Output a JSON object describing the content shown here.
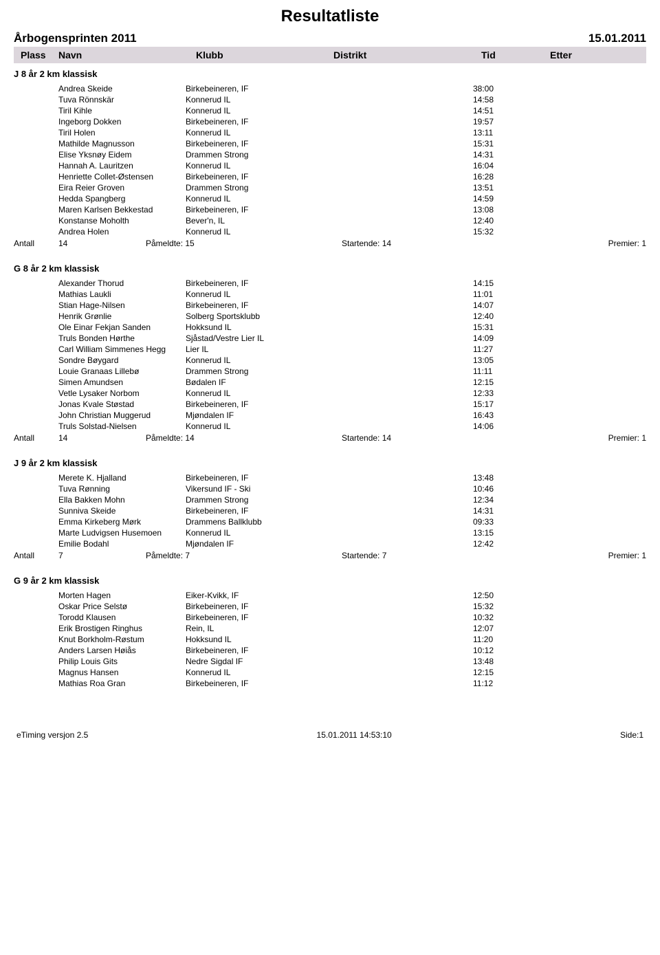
{
  "page": {
    "title": "Resultatliste",
    "subtitle": "Årbogensprinten 2011",
    "date": "15.01.2011"
  },
  "columns": {
    "plass": "Plass",
    "navn": "Navn",
    "klubb": "Klubb",
    "distrikt": "Distrikt",
    "tid": "Tid",
    "etter": "Etter"
  },
  "labels": {
    "antall": "Antall",
    "pameldte": "Påmeldte:",
    "startende": "Startende:",
    "premier": "Premier:"
  },
  "categories": [
    {
      "name": "J 8 år 2 km klassisk",
      "results": [
        {
          "name": "Andrea Skeide",
          "club": "Birkebeineren, IF",
          "time": "38:00"
        },
        {
          "name": "Tuva Rönnskär",
          "club": "Konnerud IL",
          "time": "14:58"
        },
        {
          "name": "Tiril Kihle",
          "club": "Konnerud IL",
          "time": "14:51"
        },
        {
          "name": "Ingeborg Dokken",
          "club": "Birkebeineren, IF",
          "time": "19:57"
        },
        {
          "name": "Tiril Holen",
          "club": "Konnerud IL",
          "time": "13:11"
        },
        {
          "name": "Mathilde Magnusson",
          "club": "Birkebeineren, IF",
          "time": "15:31"
        },
        {
          "name": "Elise Yksnøy Eidem",
          "club": "Drammen Strong",
          "time": "14:31"
        },
        {
          "name": "Hannah A. Lauritzen",
          "club": "Konnerud IL",
          "time": "16:04"
        },
        {
          "name": "Henriette Collet-Østensen",
          "club": "Birkebeineren, IF",
          "time": "16:28"
        },
        {
          "name": "Eira Reier Groven",
          "club": "Drammen Strong",
          "time": "13:51"
        },
        {
          "name": "Hedda Spangberg",
          "club": "Konnerud IL",
          "time": "14:59"
        },
        {
          "name": "Maren Karlsen Bekkestad",
          "club": "Birkebeineren, IF",
          "time": "13:08"
        },
        {
          "name": "Konstanse Moholth",
          "club": "Bever'n, IL",
          "time": "12:40"
        },
        {
          "name": "Andrea Holen",
          "club": "Konnerud IL",
          "time": "15:32"
        }
      ],
      "summary": {
        "antall": "14",
        "pameldte": "15",
        "startende": "14",
        "premier": "1"
      }
    },
    {
      "name": "G 8 år 2 km klassisk",
      "results": [
        {
          "name": "Alexander Thorud",
          "club": "Birkebeineren, IF",
          "time": "14:15"
        },
        {
          "name": "Mathias Laukli",
          "club": "Konnerud IL",
          "time": "11:01"
        },
        {
          "name": "Stian Hage-Nilsen",
          "club": "Birkebeineren, IF",
          "time": "14:07"
        },
        {
          "name": "Henrik Grønlie",
          "club": "Solberg Sportsklubb",
          "time": "12:40"
        },
        {
          "name": "Ole Einar Fekjan Sanden",
          "club": "Hokksund IL",
          "time": "15:31"
        },
        {
          "name": "Truls Bonden Hørthe",
          "club": "Sjåstad/Vestre Lier IL",
          "time": "14:09"
        },
        {
          "name": "Carl William Simmenes Hegg",
          "club": "Lier IL",
          "time": "11:27"
        },
        {
          "name": "Sondre Bøygard",
          "club": "Konnerud IL",
          "time": "13:05"
        },
        {
          "name": "Louie Granaas Lillebø",
          "club": "Drammen Strong",
          "time": "11:11"
        },
        {
          "name": "Simen Amundsen",
          "club": "Bødalen IF",
          "time": "12:15"
        },
        {
          "name": "Vetle Lysaker Norbom",
          "club": "Konnerud IL",
          "time": "12:33"
        },
        {
          "name": "Jonas Kvale Støstad",
          "club": "Birkebeineren, IF",
          "time": "15:17"
        },
        {
          "name": "John Christian Muggerud",
          "club": "Mjøndalen IF",
          "time": "16:43"
        },
        {
          "name": "Truls Solstad-Nielsen",
          "club": "Konnerud IL",
          "time": "14:06"
        }
      ],
      "summary": {
        "antall": "14",
        "pameldte": "14",
        "startende": "14",
        "premier": "1"
      }
    },
    {
      "name": "J 9 år 2 km klassisk",
      "results": [
        {
          "name": "Merete K. Hjalland",
          "club": "Birkebeineren, IF",
          "time": "13:48"
        },
        {
          "name": "Tuva Rønning",
          "club": "Vikersund IF - Ski",
          "time": "10:46"
        },
        {
          "name": "Ella Bakken Mohn",
          "club": "Drammen Strong",
          "time": "12:34"
        },
        {
          "name": "Sunniva Skeide",
          "club": "Birkebeineren, IF",
          "time": "14:31"
        },
        {
          "name": "Emma Kirkeberg Mørk",
          "club": "Drammens Ballklubb",
          "time": "09:33"
        },
        {
          "name": "Marte Ludvigsen Husemoen",
          "club": "Konnerud IL",
          "time": "13:15"
        },
        {
          "name": "Emilie Bodahl",
          "club": "Mjøndalen IF",
          "time": "12:42"
        }
      ],
      "summary": {
        "antall": "7",
        "pameldte": "7",
        "startende": "7",
        "premier": "1"
      }
    },
    {
      "name": "G 9 år 2 km klassisk",
      "results": [
        {
          "name": "Morten Hagen",
          "club": "Eiker-Kvikk, IF",
          "time": "12:50"
        },
        {
          "name": "Oskar Price Selstø",
          "club": "Birkebeineren, IF",
          "time": "15:32"
        },
        {
          "name": "Torodd Klausen",
          "club": "Birkebeineren, IF",
          "time": "10:32"
        },
        {
          "name": "Erik Brostigen Ringhus",
          "club": "Rein, IL",
          "time": "12:07"
        },
        {
          "name": "Knut Borkholm-Røstum",
          "club": "Hokksund IL",
          "time": "11:20"
        },
        {
          "name": "Anders Larsen Høiås",
          "club": "Birkebeineren, IF",
          "time": "10:12"
        },
        {
          "name": "Philip Louis Gits",
          "club": "Nedre Sigdal IF",
          "time": "13:48"
        },
        {
          "name": "Magnus Hansen",
          "club": "Konnerud IL",
          "time": "12:15"
        },
        {
          "name": "Mathias Roa Gran",
          "club": "Birkebeineren, IF",
          "time": "11:12"
        }
      ],
      "summary": null
    }
  ],
  "footer": {
    "version": "eTiming versjon 2.5",
    "timestamp": "15.01.2011 14:53:10",
    "page": "Side:1"
  },
  "colors": {
    "header_bg": "#dcd6dc",
    "text": "#000000",
    "background": "#ffffff"
  }
}
